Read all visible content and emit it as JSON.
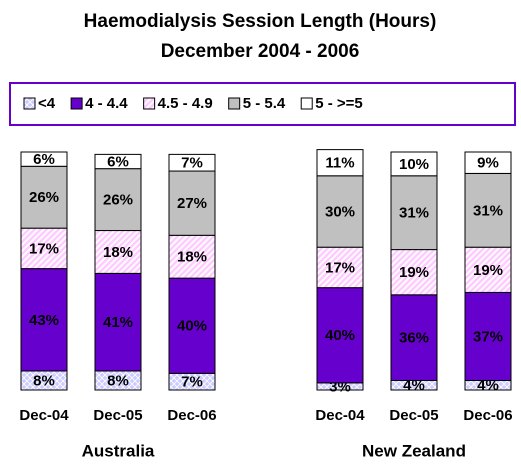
{
  "chart_data": {
    "type": "stacked_bar",
    "title": "Haemodialysis Session Length (Hours)",
    "subtitle": "December 2004 - 2006",
    "categories": [
      "Dec-04",
      "Dec-05",
      "Dec-06",
      null,
      "Dec-04",
      "Dec-05",
      "Dec-06"
    ],
    "group_labels": [
      "Australia",
      "New Zealand"
    ],
    "ylim": [
      0,
      100
    ],
    "legend_border": "#6600cc",
    "series": [
      {
        "name": "<4",
        "color": "#ccccff",
        "pattern": "crosshatch",
        "values": [
          8,
          8,
          7,
          null,
          3,
          4,
          4
        ],
        "value_labels": [
          "8%",
          "8%",
          "7%",
          null,
          "3%",
          "4%",
          "4%"
        ]
      },
      {
        "name": "4 - 4.4",
        "color": "#6600cc",
        "values": [
          43,
          41,
          40,
          null,
          40,
          36,
          37
        ],
        "value_labels": [
          "43%",
          "41%",
          "40%",
          null,
          "40%",
          "36%",
          "37%"
        ]
      },
      {
        "name": "4.5 - 4.9",
        "color": "#ffccff",
        "pattern": "diagonal",
        "values": [
          17,
          18,
          18,
          null,
          17,
          19,
          19
        ],
        "value_labels": [
          "17%",
          "18%",
          "18%",
          null,
          "17%",
          "19%",
          "19%"
        ]
      },
      {
        "name": "5 - 5.4",
        "color": "#c0c0c0",
        "values": [
          26,
          26,
          27,
          null,
          30,
          31,
          31
        ],
        "value_labels": [
          "26%",
          "26%",
          "27%",
          null,
          "30%",
          "31%",
          "31%"
        ]
      },
      {
        "name": "5 - >=5",
        "color": "#ffffff",
        "values": [
          6,
          6,
          7,
          null,
          11,
          10,
          9
        ],
        "value_labels": [
          "6%",
          "6%",
          "7%",
          null,
          "11%",
          "10%",
          "9%"
        ]
      }
    ]
  }
}
